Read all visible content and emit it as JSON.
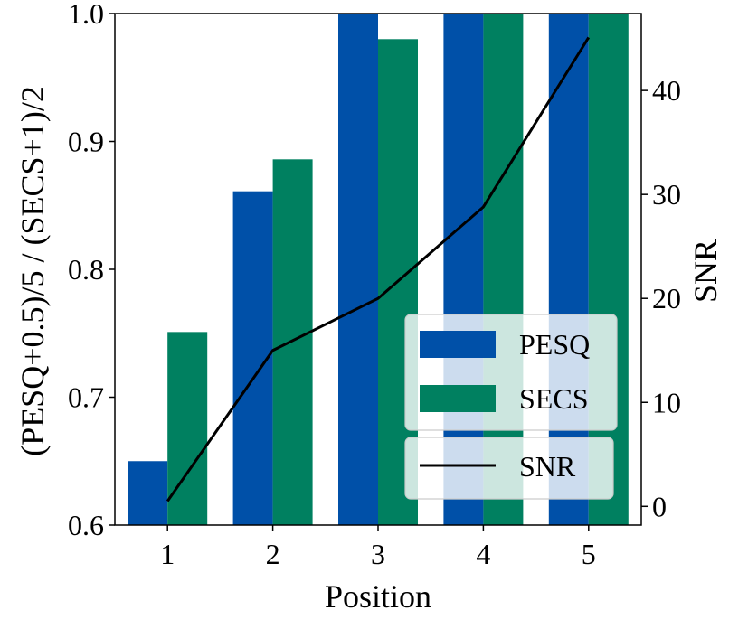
{
  "chart_data": {
    "type": "bar",
    "categories": [
      "1",
      "2",
      "3",
      "4",
      "5"
    ],
    "series": [
      {
        "name": "PESQ",
        "values": [
          0.65,
          0.861,
          1.0,
          1.0,
          1.0
        ],
        "color": "#0050A8"
      },
      {
        "name": "SECS",
        "values": [
          0.751,
          0.886,
          0.98,
          1.0,
          1.0
        ],
        "color": "#008060"
      }
    ],
    "line_series": {
      "name": "SNR",
      "values": [
        0.5,
        15.0,
        20.0,
        28.8,
        45.1
      ],
      "color": "#000000",
      "axis": "right"
    },
    "xlabel": "Position",
    "ylabel": "(PESQ+0.5)/5 / (SECS+1)/2",
    "y2label": "SNR",
    "ylim": [
      0.6,
      1.0
    ],
    "y2lim": [
      -1.8,
      47.4
    ],
    "yticks": [
      "0.6",
      "0.7",
      "0.8",
      "0.9",
      "1.0"
    ],
    "y2ticks": [
      "0",
      "10",
      "20",
      "30",
      "40"
    ],
    "legend": {
      "placement": "lower-right",
      "bar_entries": [
        "PESQ",
        "SECS"
      ],
      "line_entries": [
        "SNR"
      ]
    },
    "grid": false
  }
}
